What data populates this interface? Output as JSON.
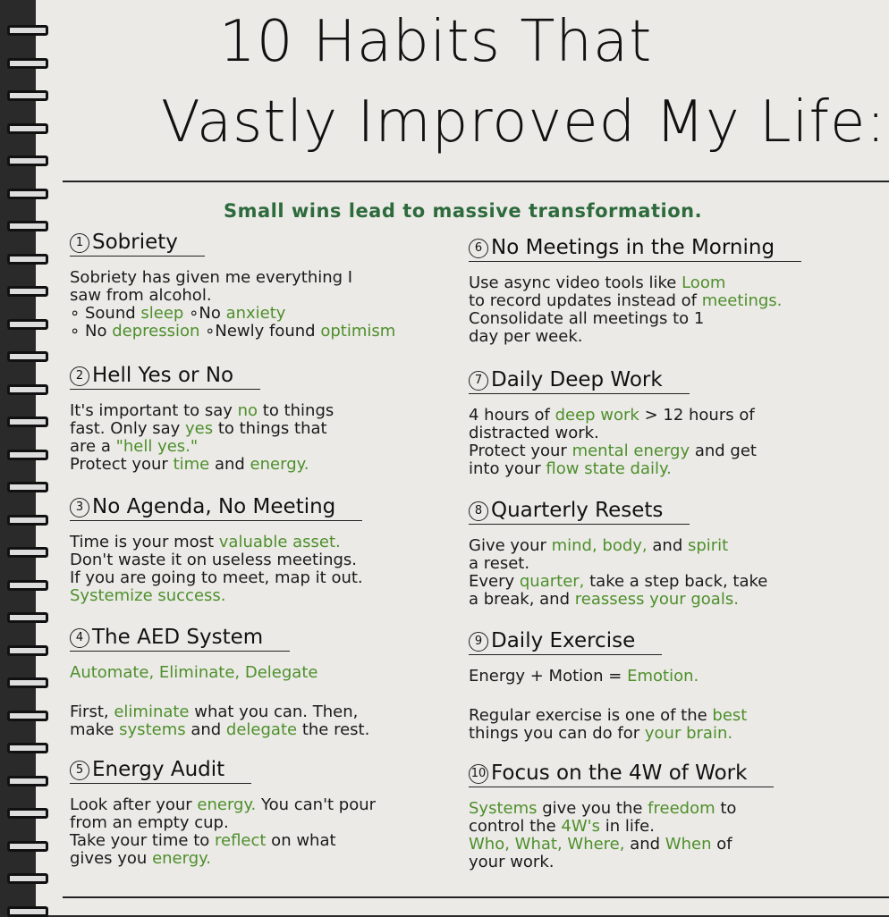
{
  "title": [
    "10 Habits That",
    "Vastly Improved My Life:"
  ],
  "subtitle": "Small wins lead to massive transformation.",
  "colors": {
    "green": "#4e8f2c",
    "subtitle_green": "#2d6a3c",
    "ink": "#111111",
    "paper": "#ebeae6"
  },
  "sections": [
    {
      "num": "1",
      "heading": "Sobriety",
      "lines": [
        [
          {
            "t": "Sobriety has given me everything I"
          }
        ],
        [
          {
            "t": "saw from alcohol."
          }
        ],
        [
          {
            "t": "∘ Sound "
          },
          {
            "t": "sleep",
            "g": true
          },
          {
            "t": "          ∘No "
          },
          {
            "t": "anxiety",
            "g": true
          }
        ],
        [
          {
            "t": "∘ No "
          },
          {
            "t": "depression",
            "g": true
          },
          {
            "t": "     ∘Newly found "
          },
          {
            "t": "optimism",
            "g": true
          }
        ]
      ]
    },
    {
      "num": "2",
      "heading": "Hell Yes or No",
      "lines": [
        [
          {
            "t": "It's important to say "
          },
          {
            "t": "no",
            "g": true
          },
          {
            "t": " to things"
          }
        ],
        [
          {
            "t": "fast. Only say "
          },
          {
            "t": "yes",
            "g": true
          },
          {
            "t": " to things that"
          }
        ],
        [
          {
            "t": "are a "
          },
          {
            "t": "\"hell yes.\"",
            "g": true
          }
        ],
        [
          {
            "t": "Protect your "
          },
          {
            "t": "time",
            "g": true
          },
          {
            "t": " and "
          },
          {
            "t": "energy.",
            "g": true
          }
        ]
      ]
    },
    {
      "num": "3",
      "heading": "No Agenda, No Meeting",
      "lines": [
        [
          {
            "t": "Time is your most "
          },
          {
            "t": "valuable asset.",
            "g": true
          }
        ],
        [
          {
            "t": "Don't waste it on useless meetings."
          }
        ],
        [
          {
            "t": "If you are going to meet, map it out."
          }
        ],
        [
          {
            "t": "Systemize success.",
            "g": true
          }
        ]
      ]
    },
    {
      "num": "4",
      "heading": "The AED System",
      "lines": [
        [
          {
            "t": "Automate, Eliminate, Delegate",
            "g": true
          }
        ],
        [],
        [
          {
            "t": "First, "
          },
          {
            "t": "eliminate",
            "g": true
          },
          {
            "t": " what you can. Then,"
          }
        ],
        [
          {
            "t": "make "
          },
          {
            "t": "systems",
            "g": true
          },
          {
            "t": " and "
          },
          {
            "t": "delegate",
            "g": true
          },
          {
            "t": " the rest."
          }
        ]
      ]
    },
    {
      "num": "5",
      "heading": "Energy Audit",
      "lines": [
        [
          {
            "t": "Look after your "
          },
          {
            "t": "energy.",
            "g": true
          },
          {
            "t": " You can't pour"
          }
        ],
        [
          {
            "t": "from an empty cup."
          }
        ],
        [
          {
            "t": "Take your time to "
          },
          {
            "t": "reflect",
            "g": true
          },
          {
            "t": " on what"
          }
        ],
        [
          {
            "t": "gives you "
          },
          {
            "t": "energy.",
            "g": true
          }
        ]
      ]
    },
    {
      "num": "6",
      "heading": "No Meetings in the Morning",
      "lines": [
        [
          {
            "t": "Use async video tools like "
          },
          {
            "t": "Loom",
            "g": true
          }
        ],
        [
          {
            "t": "to record updates instead of "
          },
          {
            "t": "meetings.",
            "g": true
          }
        ],
        [
          {
            "t": "Consolidate all meetings to 1"
          }
        ],
        [
          {
            "t": "day per week."
          }
        ]
      ]
    },
    {
      "num": "7",
      "heading": "Daily Deep Work",
      "lines": [
        [
          {
            "t": "4 hours of "
          },
          {
            "t": "deep work",
            "g": true
          },
          {
            "t": " > 12 hours of"
          }
        ],
        [
          {
            "t": "distracted work."
          }
        ],
        [
          {
            "t": "Protect your "
          },
          {
            "t": "mental energy",
            "g": true
          },
          {
            "t": " and get"
          }
        ],
        [
          {
            "t": "into your "
          },
          {
            "t": "flow state daily.",
            "g": true
          }
        ]
      ]
    },
    {
      "num": "8",
      "heading": "Quarterly Resets",
      "lines": [
        [
          {
            "t": "Give your "
          },
          {
            "t": "mind, body,",
            "g": true
          },
          {
            "t": " and "
          },
          {
            "t": "spirit",
            "g": true
          }
        ],
        [
          {
            "t": "a reset."
          }
        ],
        [
          {
            "t": "Every "
          },
          {
            "t": "quarter,",
            "g": true
          },
          {
            "t": " take a step back, take"
          }
        ],
        [
          {
            "t": "a break, and "
          },
          {
            "t": "reassess your goals.",
            "g": true
          }
        ]
      ]
    },
    {
      "num": "9",
      "heading": "Daily Exercise",
      "lines": [
        [
          {
            "t": "Energy + Motion = "
          },
          {
            "t": "Emotion.",
            "g": true
          }
        ],
        [],
        [
          {
            "t": "Regular exercise is one of the "
          },
          {
            "t": "best",
            "g": true
          }
        ],
        [
          {
            "t": "things you can do for "
          },
          {
            "t": "your brain.",
            "g": true
          }
        ]
      ]
    },
    {
      "num": "10",
      "heading": "Focus on the 4W of Work",
      "lines": [
        [
          {
            "t": "Systems",
            "g": true
          },
          {
            "t": " give you the "
          },
          {
            "t": "freedom",
            "g": true
          },
          {
            "t": " to"
          }
        ],
        [
          {
            "t": "control the "
          },
          {
            "t": "4W's",
            "g": true
          },
          {
            "t": " in life."
          }
        ],
        [
          {
            "t": "Who, What, Where,",
            "g": true
          },
          {
            "t": " and "
          },
          {
            "t": "When",
            "g": true
          },
          {
            "t": " of"
          }
        ],
        [
          {
            "t": "your work."
          }
        ]
      ]
    }
  ]
}
